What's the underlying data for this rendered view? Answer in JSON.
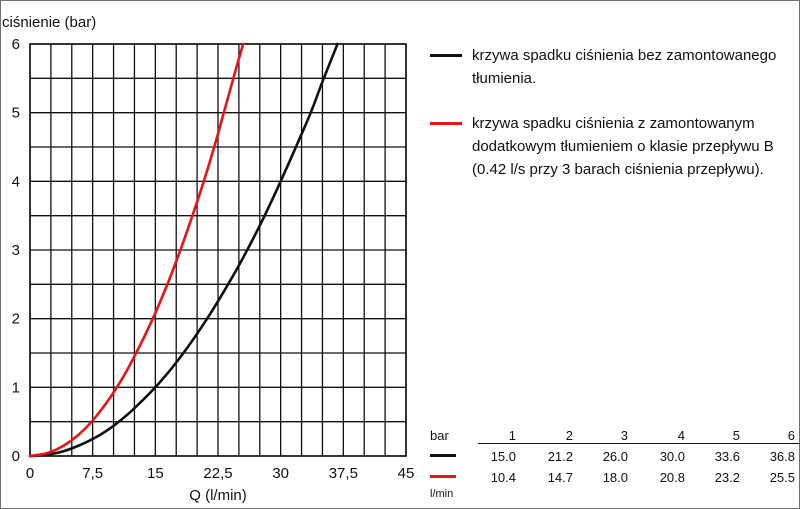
{
  "colors": {
    "black_curve": "#111111",
    "red_curve": "#ee1111"
  },
  "chart_data": {
    "type": "line",
    "ylabel": "ciśnienie (bar)",
    "xlabel": "Q  (l/min)",
    "xlim": [
      0,
      45
    ],
    "ylim": [
      0,
      6
    ],
    "x_ticks": [
      "0",
      "7,5",
      "15",
      "22,5",
      "30",
      "37,5",
      "45"
    ],
    "y_ticks": [
      "0",
      "1",
      "2",
      "3",
      "4",
      "5",
      "6"
    ],
    "grid": true,
    "legend_position": "top-right",
    "series": [
      {
        "name": "krzywa spadku ciśnienia bez zamontowanego tłumienia.",
        "color": "#111111",
        "x": [
          0,
          2,
          4,
          6,
          8,
          10,
          12,
          15,
          18,
          21.2,
          24,
          26,
          28,
          30,
          32,
          33.6,
          35,
          36.8
        ],
        "y": [
          0,
          0.02,
          0.07,
          0.16,
          0.28,
          0.44,
          0.64,
          1.0,
          1.44,
          2.0,
          2.56,
          3.0,
          3.48,
          4.0,
          4.55,
          5.0,
          5.45,
          6.0
        ]
      },
      {
        "name": "krzywa spadku ciśnienia z zamontowanym dodatkowym tłumieniem o klasie przepływu B (0.42 l/s przy 3 barach ciśnienia przepływu).",
        "color": "#ee1111",
        "x": [
          0,
          2,
          4,
          6,
          8,
          10.4,
          12.5,
          14.7,
          16.5,
          18,
          19.5,
          20.8,
          22,
          23.2,
          24.4,
          25.5
        ],
        "y": [
          0,
          0.04,
          0.15,
          0.33,
          0.59,
          1.0,
          1.45,
          2.0,
          2.52,
          3.0,
          3.52,
          4.0,
          4.48,
          5.0,
          5.53,
          6.0
        ]
      }
    ]
  },
  "legend": {
    "black_text": "krzywa spadku ciśnienia bez zamontowanego tłumienia.",
    "red_text": "krzywa spadku ciśnienia z zamontowanym dodatkowym tłumieniem o klasie przepływu B (0.42 l/s przy 3 barach ciśnienia przepływu)."
  },
  "table": {
    "bar_label": "bar",
    "unit_label": "l/min",
    "headers": [
      "1",
      "2",
      "3",
      "4",
      "5",
      "6"
    ],
    "black_row": [
      "15.0",
      "21.2",
      "26.0",
      "30.0",
      "33.6",
      "36.8"
    ],
    "red_row": [
      "10.4",
      "14.7",
      "18.0",
      "20.8",
      "23.2",
      "25.5"
    ]
  }
}
